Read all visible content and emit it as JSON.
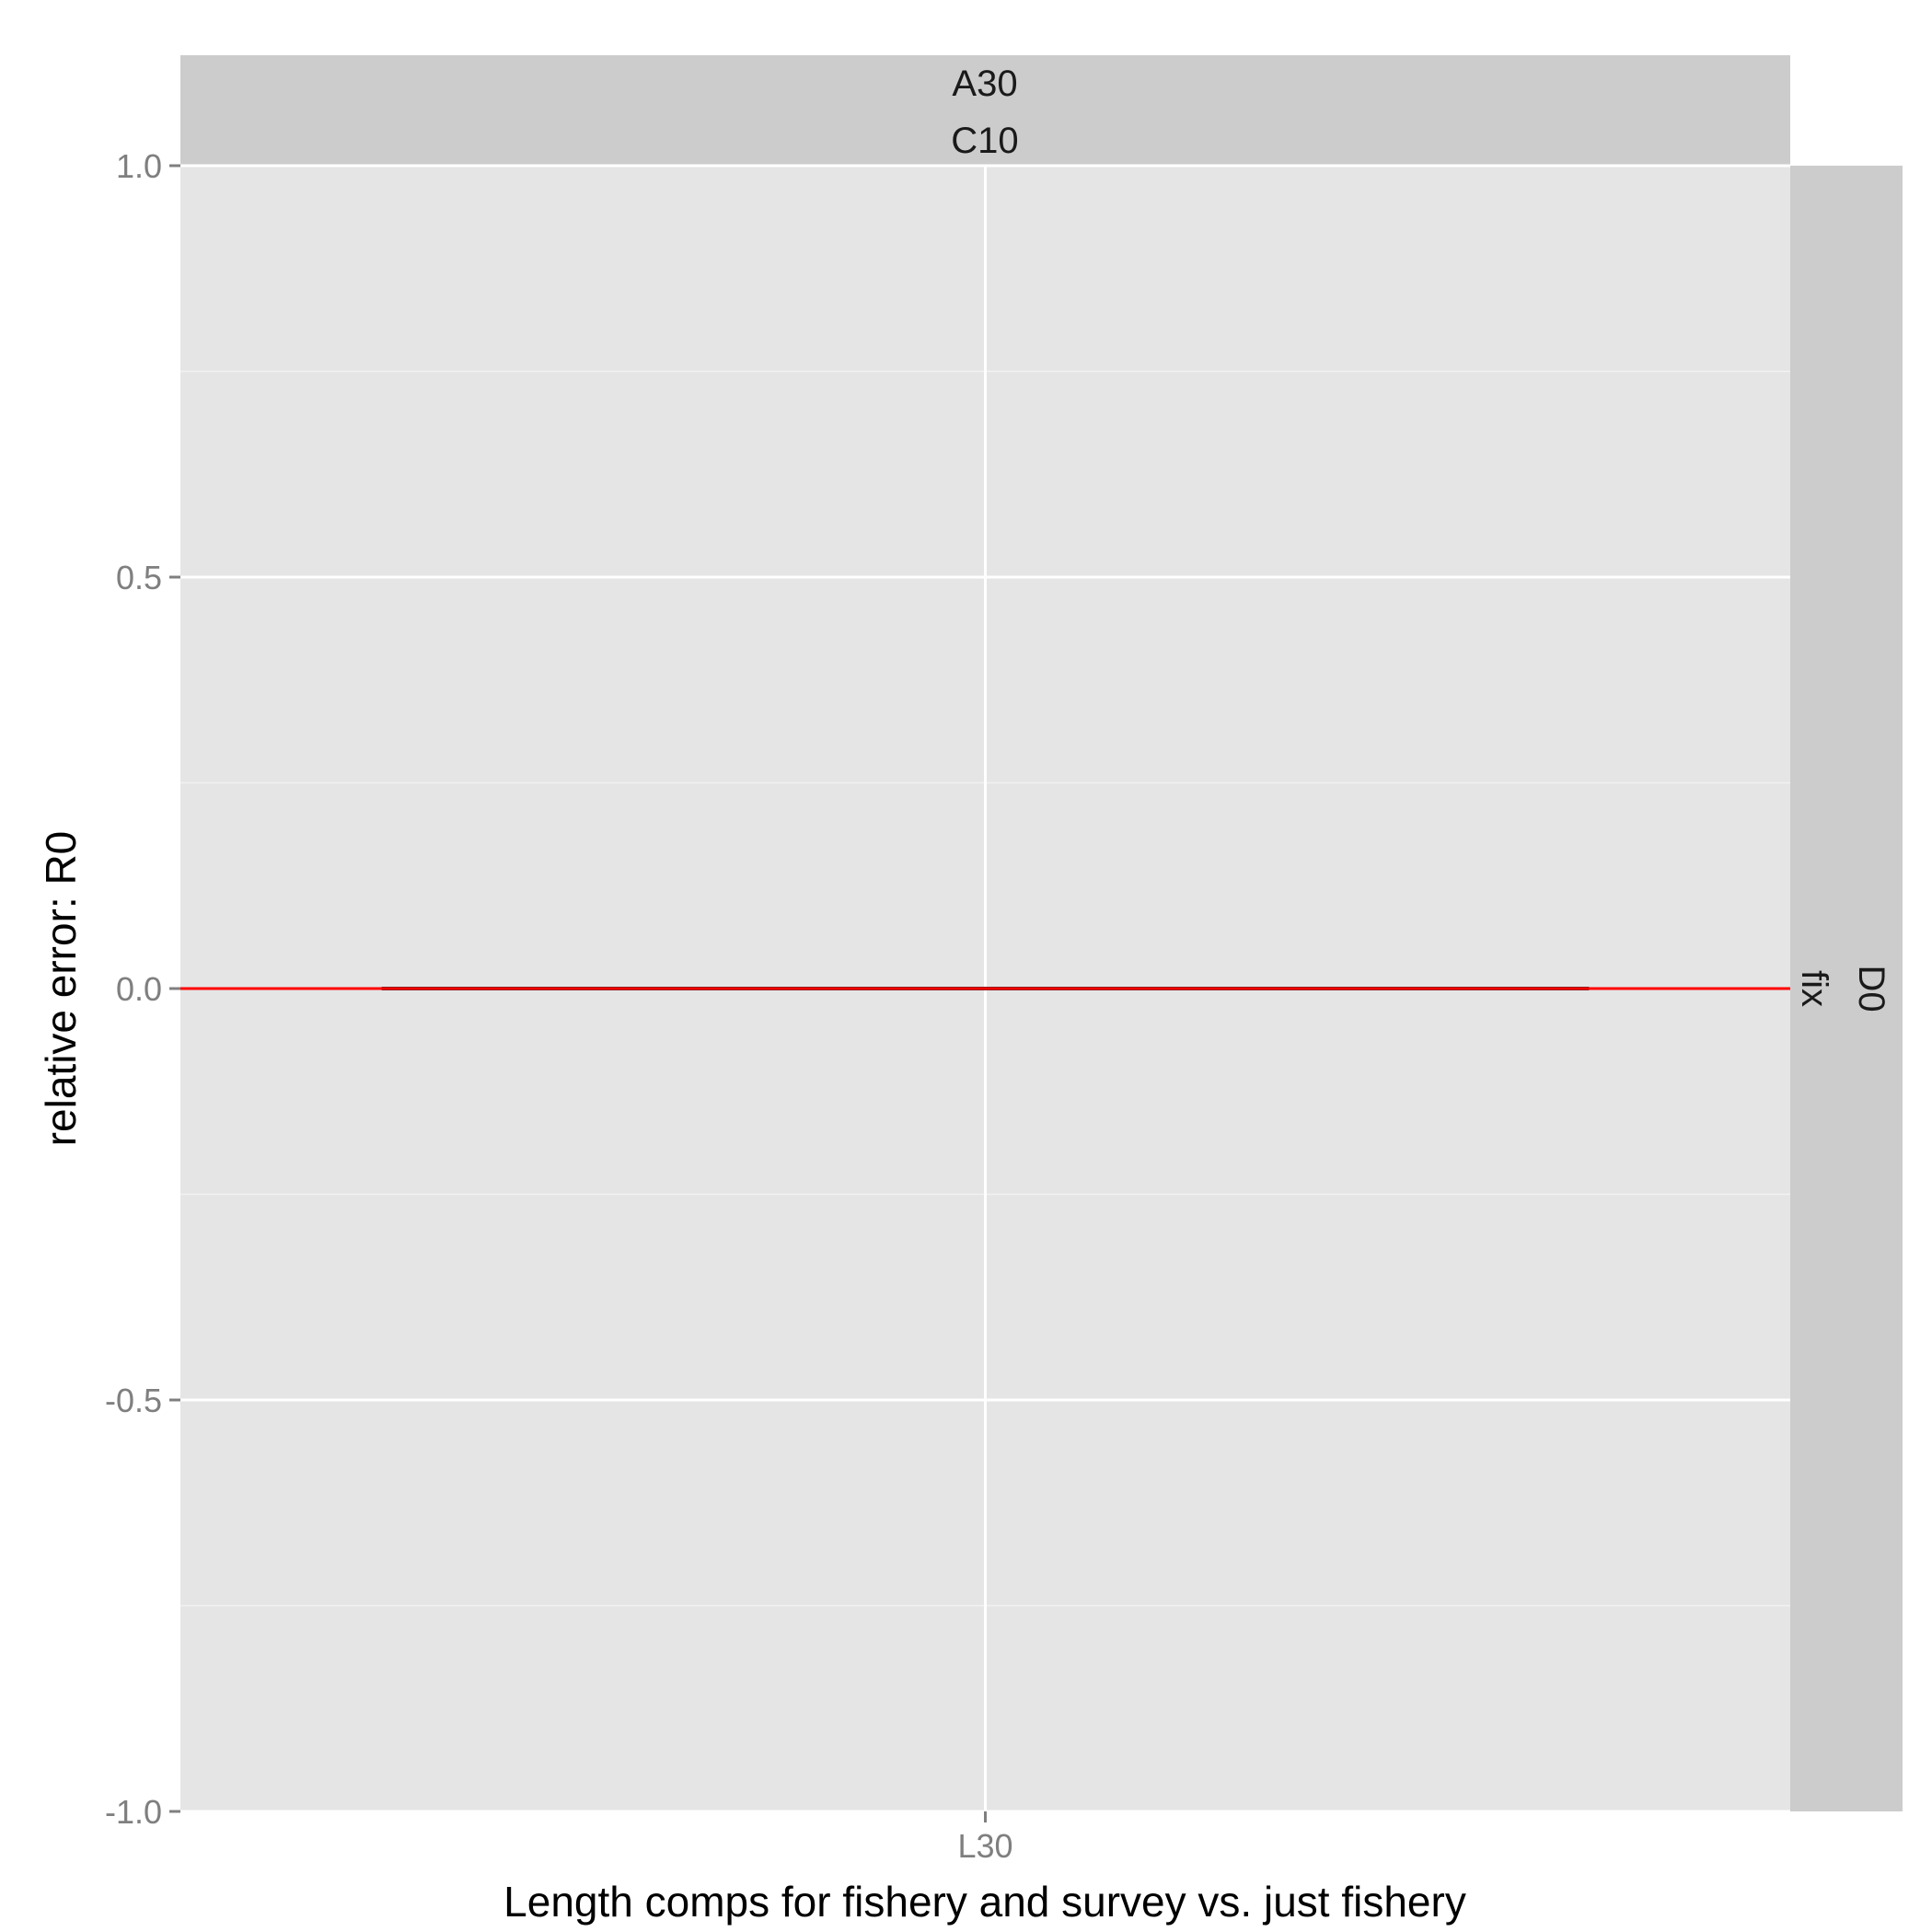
{
  "chart_data": {
    "type": "boxplot",
    "facet": {
      "col_strip": [
        "A30",
        "C10"
      ],
      "row_strip": [
        "D0",
        "fix"
      ]
    },
    "categories": [
      "L30"
    ],
    "series": [
      {
        "category": "L30",
        "box": {
          "min": 0.0,
          "q1": 0.0,
          "median": 0.0,
          "q3": 0.0,
          "max": 0.0
        }
      }
    ],
    "reference_line": {
      "y": 0,
      "color": "#ff0000"
    },
    "xlabel": "Length comps for fishery and survey vs. just fishery",
    "ylabel": "relative error: R0",
    "ylim": [
      -1.0,
      1.0
    ],
    "yticks": [
      -1.0,
      -0.5,
      0.0,
      0.5,
      1.0
    ],
    "ytick_labels": [
      "-1.0",
      "-0.5",
      "0.0",
      "0.5",
      "1.0"
    ],
    "yminor": [
      -0.75,
      -0.25,
      0.25,
      0.75
    ],
    "grid": true,
    "colors": {
      "panel_bg": "#e5e5e5",
      "strip_bg": "#cccccc",
      "grid_major": "#ffffff",
      "grid_minor": "#f2f2f2",
      "tick_text": "#7f7f7f",
      "box_line": "#333333"
    }
  }
}
